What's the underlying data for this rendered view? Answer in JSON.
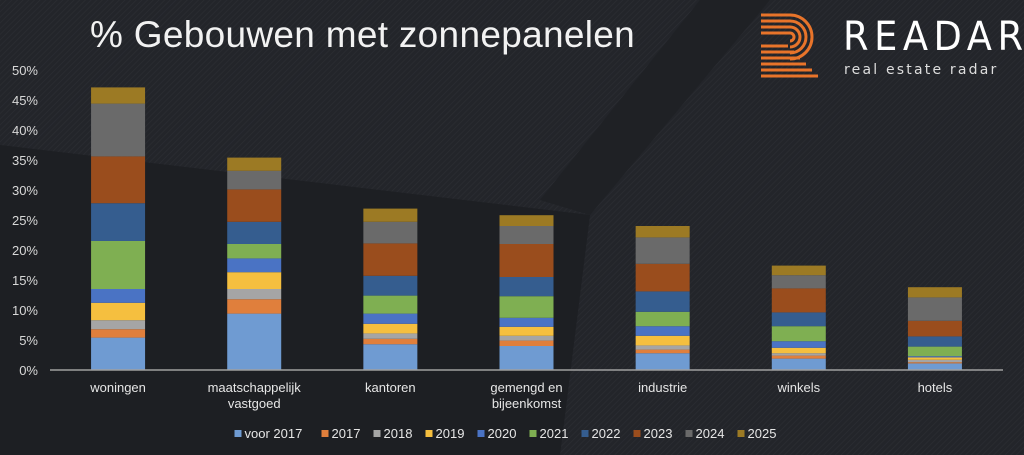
{
  "chart_data": {
    "type": "bar",
    "stacked": true,
    "title": "% Gebouwen met zonnepanelen",
    "categories": [
      "woningen",
      "maatschappelijk vastgoed",
      "kantoren",
      "gemengd en bijeenkomst",
      "industrie",
      "winkels",
      "hotels"
    ],
    "category_lines": [
      [
        "woningen"
      ],
      [
        "maatschappelijk",
        "vastgoed"
      ],
      [
        "kantoren"
      ],
      [
        "gemengd en",
        "bijeenkomst"
      ],
      [
        "industrie"
      ],
      [
        "winkels"
      ],
      [
        "hotels"
      ]
    ],
    "ylim": [
      0,
      50
    ],
    "yticks": [
      "0%",
      "5%",
      "10%",
      "15%",
      "20%",
      "25%",
      "30%",
      "35%",
      "40%",
      "45%",
      "50%"
    ],
    "ytick_values": [
      0,
      5,
      10,
      15,
      20,
      25,
      30,
      35,
      40,
      45,
      50
    ],
    "grid": false,
    "legend_position": "bottom",
    "series": [
      {
        "name": "voor 2017",
        "color": "#6f9bd2",
        "values": [
          5.4,
          9.4,
          4.3,
          4.0,
          2.8,
          1.9,
          1.1
        ]
      },
      {
        "name": "2017",
        "color": "#e07f3c",
        "values": [
          1.4,
          2.4,
          0.9,
          0.9,
          0.6,
          0.5,
          0.2
        ]
      },
      {
        "name": "2018",
        "color": "#a5a5a5",
        "values": [
          1.5,
          1.7,
          0.9,
          0.8,
          0.7,
          0.4,
          0.4
        ]
      },
      {
        "name": "2019",
        "color": "#f5bf3f",
        "values": [
          2.9,
          2.8,
          1.6,
          1.5,
          1.6,
          0.9,
          0.4
        ]
      },
      {
        "name": "2020",
        "color": "#4a73c4",
        "values": [
          2.3,
          2.3,
          1.7,
          1.5,
          1.6,
          1.1,
          0.2
        ]
      },
      {
        "name": "2021",
        "color": "#7faf52",
        "values": [
          8.0,
          2.4,
          3.0,
          3.6,
          2.4,
          2.5,
          1.6
        ]
      },
      {
        "name": "2022",
        "color": "#355d8f",
        "values": [
          6.3,
          3.7,
          3.3,
          3.2,
          3.4,
          2.3,
          1.7
        ]
      },
      {
        "name": "2023",
        "color": "#9a4d1d",
        "values": [
          7.8,
          5.4,
          5.4,
          5.5,
          4.6,
          4.0,
          2.6
        ]
      },
      {
        "name": "2024",
        "color": "#6a6a6a",
        "values": [
          8.8,
          3.1,
          3.6,
          3.0,
          4.4,
          2.2,
          3.9
        ]
      },
      {
        "name": "2025",
        "color": "#9c7a24",
        "values": [
          2.7,
          2.2,
          2.2,
          1.8,
          1.9,
          1.6,
          1.7
        ]
      }
    ]
  },
  "logo": {
    "word": "READAR",
    "tagline": "real estate radar",
    "color": "#e8742a"
  }
}
